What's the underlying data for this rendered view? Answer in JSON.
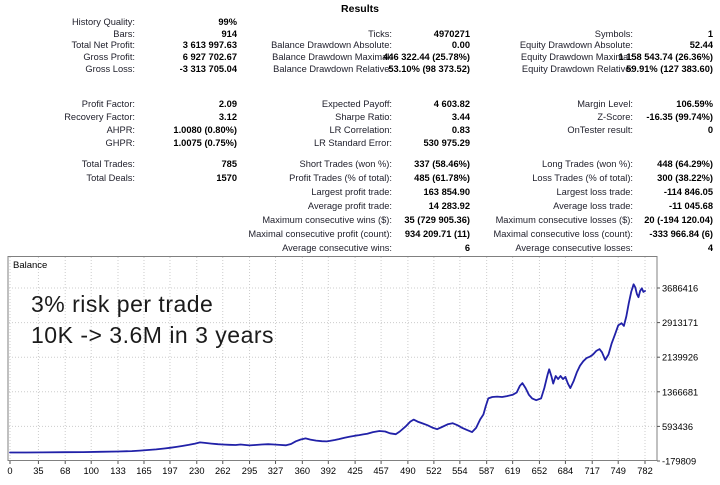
{
  "title": "Results",
  "table": {
    "groups": [
      {
        "rows": [
          [
            "History Quality:",
            "99%",
            "",
            "",
            "",
            ""
          ],
          [
            "Bars:",
            "914",
            "Ticks:",
            "4970271",
            "Symbols:",
            "1"
          ],
          [
            "Total Net Profit:",
            "3 613 997.63",
            "Balance Drawdown Absolute:",
            "0.00",
            "Equity Drawdown Absolute:",
            "52.44"
          ],
          [
            "Gross Profit:",
            "6 927 702.67",
            "Balance Drawdown Maximal:",
            "446 322.44 (25.78%)",
            "Equity Drawdown Maximal:",
            "1 158 543.74 (26.36%)"
          ],
          [
            "Gross Loss:",
            "-3 313 705.04",
            "Balance Drawdown Relative:",
            "53.10% (98 373.52)",
            "Equity Drawdown Relative:",
            "59.91% (127 383.60)"
          ]
        ]
      },
      {
        "rows": [
          [
            "Profit Factor:",
            "2.09",
            "Expected Payoff:",
            "4 603.82",
            "Margin Level:",
            "106.59%"
          ],
          [
            "Recovery Factor:",
            "3.12",
            "Sharpe Ratio:",
            "3.44",
            "Z-Score:",
            "-16.35 (99.74%)"
          ],
          [
            "AHPR:",
            "1.0080 (0.80%)",
            "LR Correlation:",
            "0.83",
            "OnTester result:",
            "0"
          ],
          [
            "GHPR:",
            "1.0075 (0.75%)",
            "LR Standard Error:",
            "530 975.29",
            "",
            ""
          ]
        ]
      },
      {
        "rows": [
          [
            "Total Trades:",
            "785",
            "Short Trades (won %):",
            "337 (58.46%)",
            "Long Trades (won %):",
            "448 (64.29%)"
          ],
          [
            "Total Deals:",
            "1570",
            "Profit Trades (% of total):",
            "485 (61.78%)",
            "Loss Trades (% of total):",
            "300 (38.22%)"
          ],
          [
            "",
            "",
            "Largest profit trade:",
            "163 854.90",
            "Largest loss trade:",
            "-114 846.05"
          ],
          [
            "",
            "",
            "Average profit trade:",
            "14 283.92",
            "Average loss trade:",
            "-11 045.68"
          ],
          [
            "",
            "",
            "Maximum consecutive wins ($):",
            "35 (729 905.36)",
            "Maximum consecutive losses ($):",
            "20 (-194 120.04)"
          ],
          [
            "",
            "",
            "Maximal consecutive profit (count):",
            "934 209.71 (11)",
            "Maximal consecutive loss (count):",
            "-333 966.84 (6)"
          ],
          [
            "",
            "",
            "Average consecutive wins:",
            "6",
            "Average consecutive losses:",
            "4"
          ]
        ]
      }
    ]
  },
  "chart": {
    "legend": "Balance",
    "annotation_line1": "3% risk per trade",
    "annotation_line2": "10K -> 3.6M in 3 years"
  },
  "chart_data": {
    "type": "line",
    "title": "Balance",
    "xlabel": "",
    "ylabel": "",
    "xlim": [
      0,
      782
    ],
    "ylim": [
      -179809,
      3686416
    ],
    "grid": "dotted",
    "legend_position": "top-left",
    "line_color": "#2121a8",
    "grid_color": "#cccccc",
    "border_color": "#808080",
    "x_ticks": [
      0,
      35,
      68,
      100,
      133,
      165,
      197,
      230,
      262,
      295,
      327,
      360,
      392,
      425,
      457,
      490,
      522,
      554,
      587,
      619,
      652,
      684,
      717,
      749,
      782
    ],
    "y_ticks": [
      -179809,
      593436,
      1366681,
      2139926,
      2913171,
      3686416
    ],
    "series": [
      {
        "name": "Balance",
        "points": [
          [
            0,
            10000
          ],
          [
            20,
            11000
          ],
          [
            40,
            13000
          ],
          [
            68,
            16000
          ],
          [
            90,
            20000
          ],
          [
            110,
            25000
          ],
          [
            133,
            32000
          ],
          [
            150,
            42000
          ],
          [
            160,
            52000
          ],
          [
            170,
            65000
          ],
          [
            180,
            80000
          ],
          [
            190,
            100000
          ],
          [
            197,
            115000
          ],
          [
            205,
            135000
          ],
          [
            212,
            155000
          ],
          [
            220,
            180000
          ],
          [
            228,
            210000
          ],
          [
            234,
            235000
          ],
          [
            240,
            225000
          ],
          [
            248,
            210000
          ],
          [
            256,
            195000
          ],
          [
            262,
            188000
          ],
          [
            270,
            182000
          ],
          [
            278,
            178000
          ],
          [
            284,
            190000
          ],
          [
            290,
            178000
          ],
          [
            295,
            168000
          ],
          [
            302,
            178000
          ],
          [
            310,
            188000
          ],
          [
            318,
            195000
          ],
          [
            325,
            188000
          ],
          [
            332,
            180000
          ],
          [
            340,
            172000
          ],
          [
            346,
            200000
          ],
          [
            352,
            260000
          ],
          [
            358,
            300000
          ],
          [
            364,
            325000
          ],
          [
            370,
            298000
          ],
          [
            377,
            275000
          ],
          [
            384,
            262000
          ],
          [
            390,
            258000
          ],
          [
            394,
            270000
          ],
          [
            400,
            290000
          ],
          [
            405,
            310000
          ],
          [
            412,
            340000
          ],
          [
            418,
            360000
          ],
          [
            425,
            385000
          ],
          [
            430,
            400000
          ],
          [
            435,
            415000
          ],
          [
            440,
            430000
          ],
          [
            447,
            465000
          ],
          [
            455,
            490000
          ],
          [
            462,
            480000
          ],
          [
            468,
            440000
          ],
          [
            475,
            420000
          ],
          [
            480,
            480000
          ],
          [
            487,
            590000
          ],
          [
            493,
            700000
          ],
          [
            497,
            745000
          ],
          [
            502,
            700000
          ],
          [
            508,
            660000
          ],
          [
            514,
            620000
          ],
          [
            521,
            560000
          ],
          [
            526,
            530000
          ],
          [
            532,
            580000
          ],
          [
            539,
            640000
          ],
          [
            545,
            665000
          ],
          [
            551,
            620000
          ],
          [
            557,
            560000
          ],
          [
            563,
            510000
          ],
          [
            569,
            465000
          ],
          [
            574,
            560000
          ],
          [
            579,
            750000
          ],
          [
            583,
            860000
          ],
          [
            586,
            1050000
          ],
          [
            589,
            1220000
          ],
          [
            594,
            1250000
          ],
          [
            600,
            1260000
          ],
          [
            606,
            1250000
          ],
          [
            612,
            1270000
          ],
          [
            619,
            1300000
          ],
          [
            624,
            1350000
          ],
          [
            628,
            1500000
          ],
          [
            631,
            1560000
          ],
          [
            635,
            1450000
          ],
          [
            639,
            1300000
          ],
          [
            643,
            1220000
          ],
          [
            648,
            1180000
          ],
          [
            654,
            1220000
          ],
          [
            658,
            1450000
          ],
          [
            662,
            1750000
          ],
          [
            664,
            1870000
          ],
          [
            667,
            1700000
          ],
          [
            669,
            1550000
          ],
          [
            672,
            1720000
          ],
          [
            675,
            1650000
          ],
          [
            678,
            1720000
          ],
          [
            681,
            1650000
          ],
          [
            684,
            1700000
          ],
          [
            687,
            1550000
          ],
          [
            690,
            1450000
          ],
          [
            694,
            1600000
          ],
          [
            698,
            1800000
          ],
          [
            702,
            1950000
          ],
          [
            706,
            2050000
          ],
          [
            710,
            2120000
          ],
          [
            714,
            2150000
          ],
          [
            718,
            2200000
          ],
          [
            722,
            2280000
          ],
          [
            726,
            2320000
          ],
          [
            729,
            2250000
          ],
          [
            733,
            2080000
          ],
          [
            737,
            2200000
          ],
          [
            741,
            2450000
          ],
          [
            745,
            2650000
          ],
          [
            749,
            2850000
          ],
          [
            753,
            2900000
          ],
          [
            756,
            2840000
          ],
          [
            759,
            3050000
          ],
          [
            762,
            3350000
          ],
          [
            765,
            3600000
          ],
          [
            768,
            3770000
          ],
          [
            770,
            3700000
          ],
          [
            772,
            3550000
          ],
          [
            774,
            3480000
          ],
          [
            776,
            3620000
          ],
          [
            778,
            3680000
          ],
          [
            780,
            3600000
          ],
          [
            782,
            3620000
          ]
        ]
      }
    ]
  }
}
